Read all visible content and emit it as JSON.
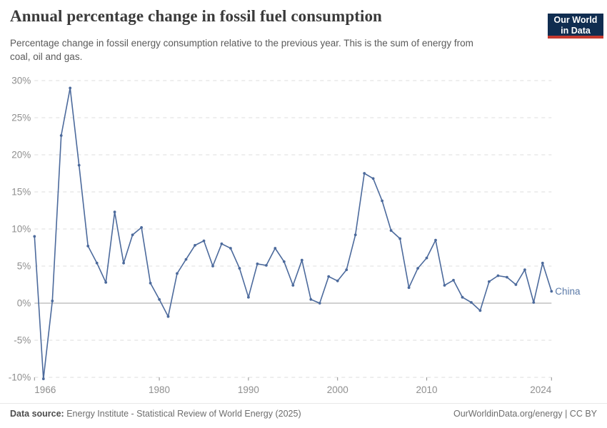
{
  "header": {
    "title": "Annual percentage change in fossil fuel consumption",
    "subtitle_line1": "Percentage change in fossil energy consumption relative to the previous year. This is the sum of energy from",
    "subtitle_line2": "coal, oil and gas.",
    "logo_line1": "Our World",
    "logo_line2": "in Data"
  },
  "chart_data": {
    "type": "line",
    "title": "Annual percentage change in fossil fuel consumption",
    "xlabel": "",
    "ylabel": "",
    "xlim": [
      1966,
      2024
    ],
    "ylim": [
      -10,
      30
    ],
    "grid": "horizontal-dashed",
    "legend_position": "end-of-line-label",
    "ytick_values": [
      30,
      25,
      20,
      15,
      10,
      5,
      0,
      -5,
      -10
    ],
    "ytick_labels": [
      "30%",
      "25%",
      "20%",
      "15%",
      "10%",
      "5%",
      "0%",
      "-5%",
      "-10%"
    ],
    "xtick_values": [
      1966,
      1980,
      1990,
      2000,
      2010,
      2024
    ],
    "xtick_labels": [
      "1966",
      "1980",
      "1990",
      "2000",
      "2010",
      "2024"
    ],
    "years": [
      1966,
      1967,
      1968,
      1969,
      1970,
      1971,
      1972,
      1973,
      1974,
      1975,
      1976,
      1977,
      1978,
      1979,
      1980,
      1981,
      1982,
      1983,
      1984,
      1985,
      1986,
      1987,
      1988,
      1989,
      1990,
      1991,
      1992,
      1993,
      1994,
      1995,
      1996,
      1997,
      1998,
      1999,
      2000,
      2001,
      2002,
      2003,
      2004,
      2005,
      2006,
      2007,
      2008,
      2009,
      2010,
      2011,
      2012,
      2013,
      2014,
      2015,
      2016,
      2017,
      2018,
      2019,
      2020,
      2021,
      2022,
      2023,
      2024
    ],
    "series": [
      {
        "name": "China",
        "color": "#4C6A9C",
        "values": [
          9.0,
          -10.2,
          0.3,
          22.6,
          29.0,
          18.6,
          7.7,
          5.4,
          2.8,
          12.3,
          5.4,
          9.2,
          10.2,
          2.7,
          0.5,
          -1.8,
          4.0,
          5.9,
          7.8,
          8.4,
          5.0,
          8.0,
          7.4,
          4.7,
          0.8,
          5.3,
          5.1,
          7.4,
          5.6,
          2.4,
          5.8,
          0.5,
          0.0,
          3.6,
          3.0,
          4.5,
          9.2,
          17.5,
          16.8,
          13.8,
          9.8,
          8.7,
          2.1,
          4.7,
          6.1,
          8.5,
          2.4,
          3.1,
          0.8,
          0.1,
          -1.0,
          2.9,
          3.7,
          3.5,
          2.5,
          4.5,
          0.1,
          5.4,
          1.6
        ]
      }
    ],
    "colors": {
      "line": "#4C6A9C",
      "entity_label": "#5b7aa8",
      "grid": "#dcdcdc",
      "zero_line": "#a3a3a3",
      "axis_text": "#8f8f8f"
    }
  },
  "footer": {
    "source_label": "Data source:",
    "source_text": "Energy Institute - Statistical Review of World Energy (2025)",
    "credit": "OurWorldinData.org/energy | CC BY"
  }
}
